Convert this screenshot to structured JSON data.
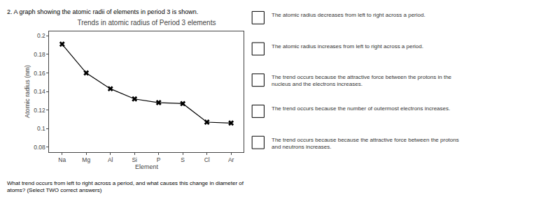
{
  "chart_data": {
    "type": "line",
    "title": "Trends in atomic radius of Period 3 elements",
    "xlabel": "Element",
    "ylabel": "Atomic radius (nm)",
    "categories": [
      "Na",
      "Mg",
      "Al",
      "Si",
      "P",
      "S",
      "Cl",
      "Ar"
    ],
    "values": [
      0.191,
      0.16,
      0.143,
      0.132,
      0.128,
      0.127,
      0.107,
      0.106
    ],
    "color": "#000000",
    "marker": "x",
    "ylim": [
      0.075,
      0.205
    ],
    "yticks": [
      0.08,
      0.1,
      0.12,
      0.14,
      0.16,
      0.18,
      0.2
    ],
    "grid": false,
    "annotations": [
      "2. A graph showing the atomic radii of elements in period 3 is shown.",
      "What trend occurs from left to right across a period, and what causes this change in diameter of\natoms? (Select TWO correct answers)",
      "The atomic radius decreases from left to right across a period.",
      "The atomic radius increases from left to right across a period.",
      "The trend occurs because the attractive force between the protons in the\nnucleus and the electrons increases.",
      "The trend occurs because the number of outermost electrons increases.",
      "The trend occurs because because the attractive force between the protons\nand neutrons increases."
    ]
  }
}
